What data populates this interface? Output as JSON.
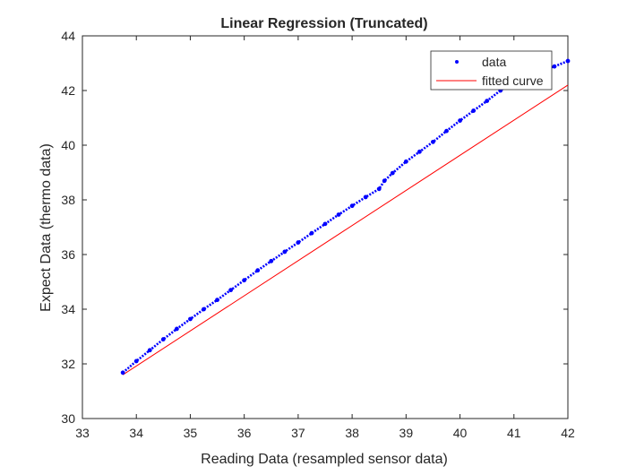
{
  "chart_data": {
    "type": "scatter",
    "title": "Linear Regression (Truncated)",
    "xlabel": "Reading Data (resampled sensor data)",
    "ylabel": "Expect Data (thermo data)",
    "xlim": [
      33,
      42
    ],
    "ylim": [
      30,
      44
    ],
    "xticks": [
      33,
      34,
      35,
      36,
      37,
      38,
      39,
      40,
      41,
      42
    ],
    "yticks": [
      30,
      32,
      34,
      36,
      38,
      40,
      42,
      44
    ],
    "grid": false,
    "legend": {
      "position": "top-right",
      "entries": [
        "data",
        "fitted curve"
      ]
    },
    "colors": {
      "data": "#0000ff",
      "fit": "#ff0000",
      "axes": "#262626"
    },
    "series": [
      {
        "name": "data",
        "style": "markers",
        "x": [
          33.75,
          34.0,
          34.25,
          34.5,
          34.75,
          35.0,
          35.25,
          35.5,
          35.75,
          36.0,
          36.25,
          36.5,
          36.75,
          37.0,
          37.25,
          37.5,
          37.75,
          38.0,
          38.25,
          38.5,
          38.6,
          38.75,
          39.0,
          39.25,
          39.5,
          39.75,
          40.0,
          40.25,
          40.5,
          40.75,
          41.0,
          41.25,
          41.5,
          41.75,
          42.0
        ],
        "y": [
          31.68,
          32.1,
          32.5,
          32.9,
          33.28,
          33.64,
          34.0,
          34.34,
          34.7,
          35.06,
          35.42,
          35.76,
          36.1,
          36.44,
          36.78,
          37.12,
          37.46,
          37.78,
          38.1,
          38.4,
          38.7,
          38.98,
          39.4,
          39.76,
          40.12,
          40.52,
          40.9,
          41.26,
          41.62,
          42.0,
          42.34,
          42.7,
          42.74,
          42.88,
          43.08
        ]
      },
      {
        "name": "fitted curve",
        "style": "line",
        "x": [
          33.75,
          42.0
        ],
        "y": [
          31.6,
          42.2
        ]
      }
    ]
  }
}
